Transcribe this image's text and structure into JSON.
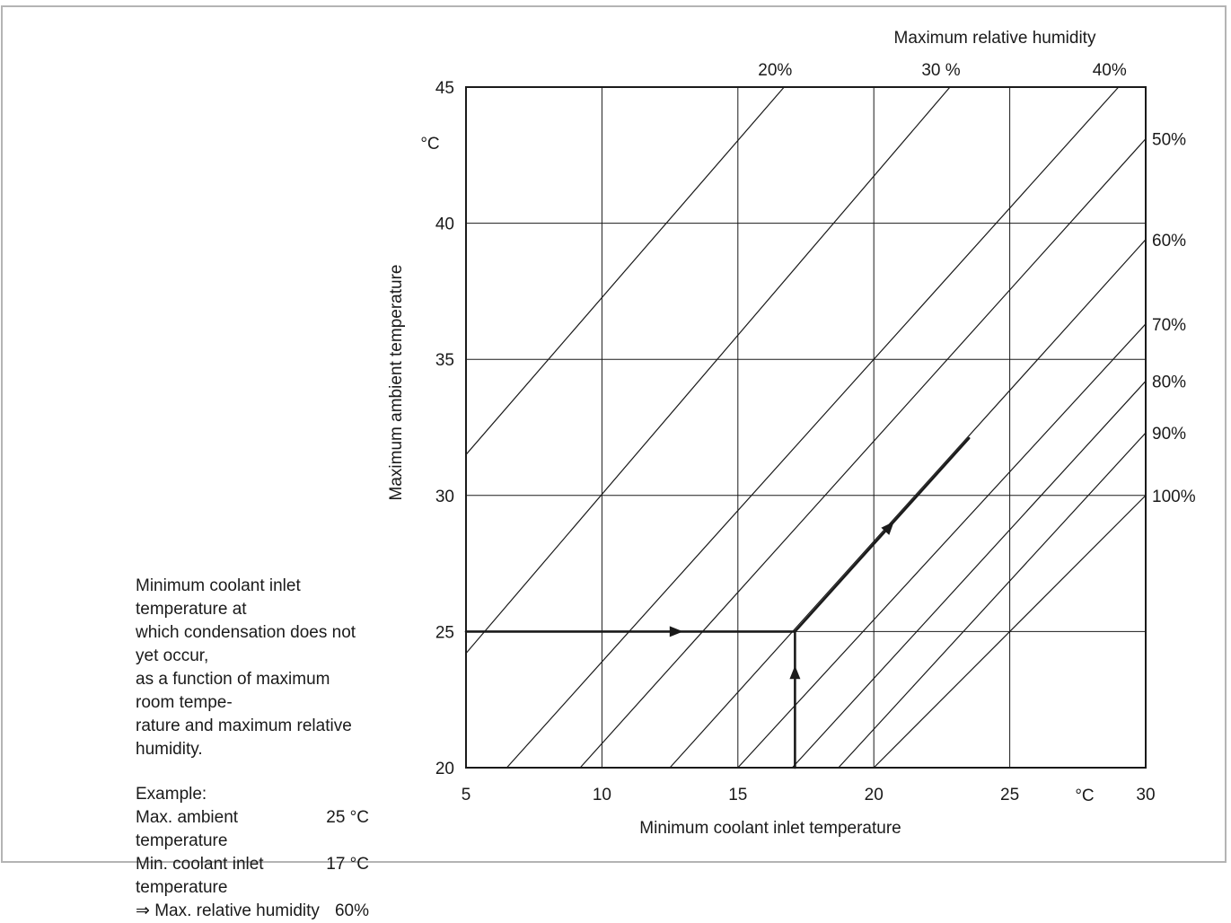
{
  "caption": {
    "lines": [
      "Minimum coolant inlet temperature at",
      "which condensation does not yet occur,",
      "as a function of maximum room tempe-",
      "rature and maximum relative humidity."
    ],
    "example_title": "Example:",
    "example_rows": [
      {
        "label": "Max. ambient temperature",
        "value": "25 °C"
      },
      {
        "label": "Min. coolant inlet temperature",
        "value": "17 °C"
      },
      {
        "label": "⇒ Max. relative humidity",
        "value": "60%"
      }
    ]
  },
  "chart_data": {
    "type": "line",
    "title": "",
    "xlabel": "Minimum coolant inlet temperature",
    "x_unit": "°C",
    "ylabel": "Maximum ambient temperature",
    "y_unit": "°C",
    "top_label": "Maximum relative humidity",
    "xlim": [
      5,
      30
    ],
    "ylim": [
      20,
      45
    ],
    "x_ticks": [
      5,
      10,
      15,
      20,
      25,
      30
    ],
    "y_ticks": [
      20,
      25,
      30,
      35,
      40,
      45
    ],
    "grid": true,
    "series": [
      {
        "label": "20%",
        "rh": 20,
        "points": [
          [
            5,
            31.5
          ],
          [
            16.7,
            45
          ]
        ]
      },
      {
        "label": "30 %",
        "rh": 30,
        "points": [
          [
            5,
            24.2
          ],
          [
            22.8,
            45
          ]
        ]
      },
      {
        "label": "40%",
        "rh": 40,
        "points": [
          [
            6.5,
            20
          ],
          [
            29.0,
            45
          ]
        ]
      },
      {
        "label": "50%",
        "rh": 50,
        "points": [
          [
            9.2,
            20
          ],
          [
            30,
            43.1
          ]
        ]
      },
      {
        "label": "60%",
        "rh": 60,
        "points": [
          [
            12.5,
            20
          ],
          [
            30,
            39.4
          ]
        ]
      },
      {
        "label": "70%",
        "rh": 70,
        "points": [
          [
            15.0,
            20
          ],
          [
            30,
            36.3
          ]
        ]
      },
      {
        "label": "80%",
        "rh": 80,
        "points": [
          [
            17.0,
            20
          ],
          [
            30,
            34.2
          ]
        ]
      },
      {
        "label": "90%",
        "rh": 90,
        "points": [
          [
            18.7,
            20
          ],
          [
            30,
            32.3
          ]
        ]
      },
      {
        "label": "100%",
        "rh": 100,
        "points": [
          [
            20.0,
            20
          ],
          [
            30,
            30.0
          ]
        ]
      }
    ],
    "example_path": {
      "ambient_temperature": 25,
      "coolant_inlet_temperature": 17,
      "relative_humidity": 60,
      "horizontal": [
        [
          5,
          25
        ],
        [
          17.1,
          25
        ]
      ],
      "vertical": [
        [
          17.1,
          20
        ],
        [
          17.1,
          25
        ]
      ],
      "diagonal": [
        [
          17.1,
          25
        ],
        [
          23.5,
          32.1
        ]
      ]
    }
  }
}
